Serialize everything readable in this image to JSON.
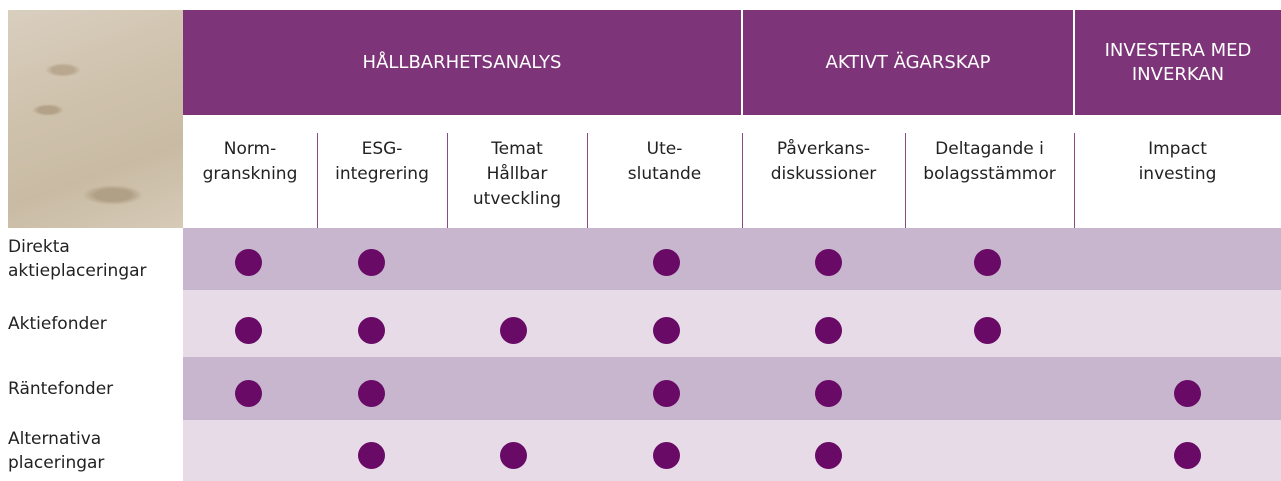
{
  "table": {
    "groups": [
      {
        "title": "HÅLLBARHETSANALYS",
        "columns": [
          "Norm-\ngranskning",
          "ESG-\nintegrering",
          "Temat\nHållbar\nutveckling",
          "Ute-\nslutande"
        ]
      },
      {
        "title": "AKTIVT ÄGARSKAP",
        "columns": [
          "Påverkans-\ndiskussioner",
          "Deltagande i\nbolagsstämmor"
        ]
      },
      {
        "title": "INVESTERA MED\nINVERKAN",
        "columns": [
          "Impact\ninvesting"
        ]
      }
    ],
    "rows": [
      {
        "label": "Direkta\naktieplaceringar",
        "cells": [
          true,
          true,
          false,
          true,
          true,
          true,
          false
        ]
      },
      {
        "label": "Aktiefonder",
        "cells": [
          true,
          true,
          true,
          true,
          true,
          true,
          false
        ]
      },
      {
        "label": "Räntefonder",
        "cells": [
          true,
          true,
          false,
          true,
          true,
          false,
          true
        ]
      },
      {
        "label": "Alternativa\nplaceringar",
        "cells": [
          false,
          true,
          true,
          true,
          true,
          false,
          true
        ]
      }
    ]
  }
}
